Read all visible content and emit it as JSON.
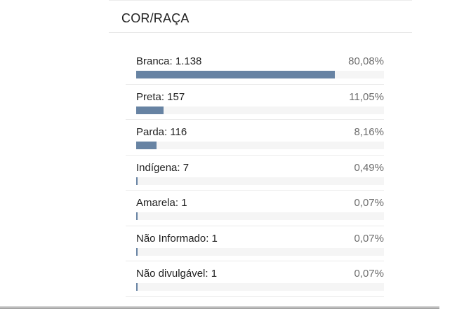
{
  "section": {
    "title": "COR/RAÇA"
  },
  "colors": {
    "bar": "#6783a3",
    "track": "#f5f5f5"
  },
  "rows": [
    {
      "label": "Branca: 1.138",
      "percent": "80,08%",
      "fraction": 0.8008
    },
    {
      "label": "Preta: 157",
      "percent": "11,05%",
      "fraction": 0.1105
    },
    {
      "label": "Parda: 116",
      "percent": "8,16%",
      "fraction": 0.0816
    },
    {
      "label": "Indígena: 7",
      "percent": "0,49%",
      "fraction": 0.0049
    },
    {
      "label": "Amarela: 1",
      "percent": "0,07%",
      "fraction": 0.0007
    },
    {
      "label": "Não Informado: 1",
      "percent": "0,07%",
      "fraction": 0.0007
    },
    {
      "label": "Não divulgável: 1",
      "percent": "0,07%",
      "fraction": 0.0007
    }
  ]
}
